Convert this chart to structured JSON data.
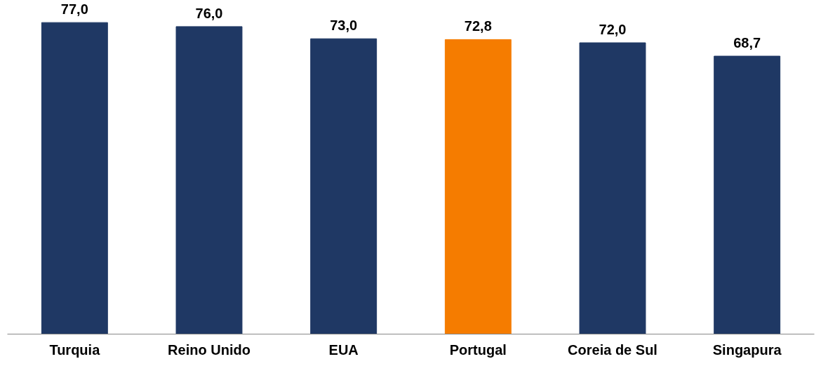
{
  "chart_data": {
    "type": "bar",
    "categories": [
      "Turquia",
      "Reino Unido",
      "EUA",
      "Portugal",
      "Coreia de Sul",
      "Singapura"
    ],
    "values": [
      77.0,
      76.0,
      73.0,
      72.8,
      72.0,
      68.7
    ],
    "colors": [
      "#1f3864",
      "#1f3864",
      "#1f3864",
      "#f57c00",
      "#1f3864",
      "#1f3864"
    ],
    "value_labels": [
      "77,0",
      "76,0",
      "73,0",
      "72,8",
      "72,0",
      "68,7"
    ],
    "tick_labels": "x",
    "grid": false
  }
}
